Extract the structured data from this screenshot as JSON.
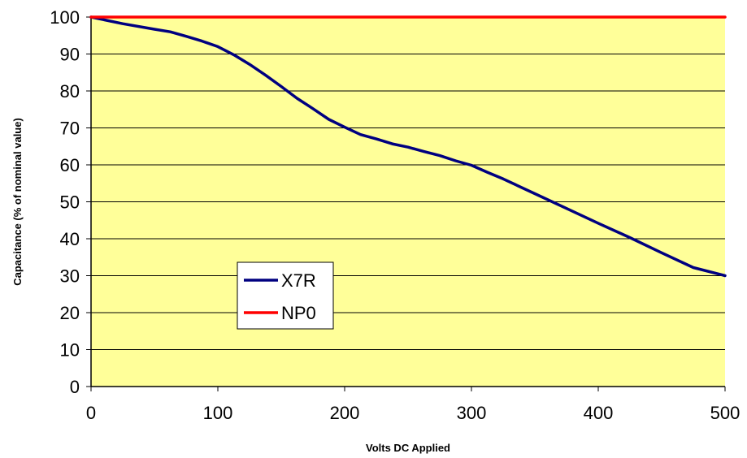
{
  "chart_data": {
    "type": "line",
    "xlabel": "Volts DC Applied",
    "ylabel": "Capacitance (% of nominal value)",
    "xlim": [
      0,
      500
    ],
    "ylim": [
      0,
      100
    ],
    "xticks": [
      0,
      100,
      200,
      300,
      400,
      500
    ],
    "yticks": [
      0,
      10,
      20,
      30,
      40,
      50,
      60,
      70,
      80,
      90,
      100
    ],
    "grid": "horizontal",
    "legend_position": "lower-left",
    "plot_background": "#ffff99",
    "series": [
      {
        "name": "X7R",
        "color": "#000080",
        "x": [
          0,
          25,
          50,
          62.5,
          75,
          87.5,
          100,
          112.5,
          125,
          137.5,
          150,
          162.5,
          175,
          187.5,
          200,
          212.5,
          225,
          237.5,
          250,
          262.5,
          275,
          287.5,
          300,
          312.5,
          325,
          350,
          375,
          400,
          425,
          450,
          475,
          500
        ],
        "y": [
          100,
          98.2,
          96.7,
          96,
          94.8,
          93.5,
          92,
          89.8,
          87.2,
          84.3,
          81.2,
          78,
          75.2,
          72.3,
          70.2,
          68.2,
          67,
          65.7,
          64.8,
          63.6,
          62.5,
          61.1,
          59.9,
          58,
          56.2,
          52.2,
          48.2,
          44.2,
          40.3,
          36.2,
          32.2,
          30
        ]
      },
      {
        "name": "NP0",
        "color": "#ff0000",
        "x": [
          0,
          500
        ],
        "y": [
          100,
          100
        ]
      }
    ]
  }
}
